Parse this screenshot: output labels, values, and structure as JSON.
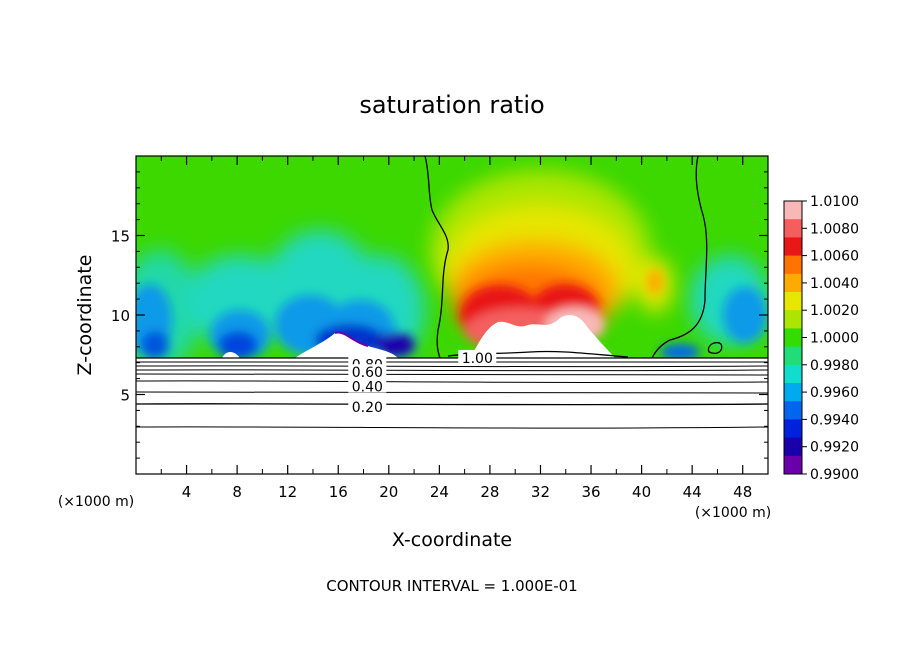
{
  "chart_data": {
    "type": "heatmap",
    "title": "saturation ratio",
    "xlabel": "X-coordinate",
    "ylabel": "Z-coordinate",
    "x_unit": "(×1000 m)",
    "z_unit": "(×1000 m)",
    "xlim": [
      0,
      50
    ],
    "ylim": [
      0,
      20
    ],
    "x_ticks": [
      "4",
      "8",
      "12",
      "16",
      "20",
      "24",
      "28",
      "32",
      "36",
      "40",
      "44",
      "48"
    ],
    "y_ticks": [
      "5",
      "10",
      "15"
    ],
    "footer": "CONTOUR INTERVAL = 1.000E-01",
    "colorbar": {
      "labels": [
        "1.0100",
        "1.0080",
        "1.0060",
        "1.0040",
        "1.0020",
        "1.0000",
        "0.9980",
        "0.9960",
        "0.9940",
        "0.9920",
        "0.9900"
      ],
      "colors": [
        "#f9b8b8",
        "#f45e5e",
        "#e81818",
        "#ff7300",
        "#ffaa00",
        "#e6e600",
        "#aae600",
        "#33dd00",
        "#22dd77",
        "#11ddcc",
        "#00aaee",
        "#0066ee",
        "#0022dd",
        "#1a00aa",
        "#6a00aa"
      ]
    },
    "contour_labels": [
      {
        "text": "0.80",
        "x": 18.3,
        "z": 6.9
      },
      {
        "text": "0.60",
        "x": 18.3,
        "z": 6.4
      },
      {
        "text": "0.40",
        "x": 18.3,
        "z": 5.5
      },
      {
        "text": "0.20",
        "x": 18.3,
        "z": 4.2
      },
      {
        "text": "1.00",
        "x": 27.0,
        "z": 7.3
      }
    ]
  }
}
